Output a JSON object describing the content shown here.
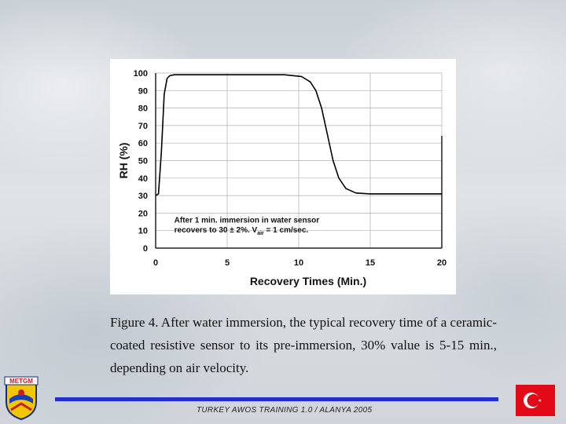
{
  "chart_data": {
    "type": "line",
    "xlabel": "Recovery Times (Min.)",
    "ylabel": "RH (%)",
    "xlim": [
      0,
      20
    ],
    "ylim": [
      0,
      100
    ],
    "x_ticks": [
      "0",
      "5",
      "10",
      "15",
      "20"
    ],
    "y_ticks": [
      "0",
      "10",
      "20",
      "30",
      "40",
      "50",
      "60",
      "70",
      "80",
      "90",
      "100"
    ],
    "grid": true,
    "annotation_line1": "After 1 min. immersion in water sensor",
    "annotation_line2_pre": "recovers to 30 ± 2%.  V",
    "annotation_sub": "air",
    "annotation_line2_post": " = 1 cm/sec.",
    "series": [
      {
        "color": "#000000",
        "x": [
          0,
          0.2,
          0.4,
          0.6,
          0.8,
          1.0,
          1.3,
          2,
          5,
          9,
          10.2,
          10.8,
          11.2,
          11.6,
          12.0,
          12.4,
          12.8,
          13.3,
          14.0,
          15.0,
          17.0,
          20.0
        ],
        "y": [
          30,
          31,
          55,
          88,
          97,
          98.5,
          99,
          99,
          99,
          99,
          98,
          95,
          90,
          80,
          65,
          50,
          40,
          34,
          31.5,
          31,
          31,
          31
        ]
      }
    ]
  },
  "caption": "Figure 4. After water immersion, the typical recovery time of a ceramic-coated resistive sensor to its pre-immersion, 30% value is 5-15 min., depending on air velocity.",
  "footer": {
    "text": "TURKEY AWOS TRAINING 1.0 / ALANYA 2005",
    "line_color": "#1f2fd0"
  },
  "logo": {
    "text": "METGM",
    "icon": "metgm-emblem-icon"
  },
  "flag": {
    "icon": "turkey-flag-icon",
    "color": "#e30a17"
  }
}
